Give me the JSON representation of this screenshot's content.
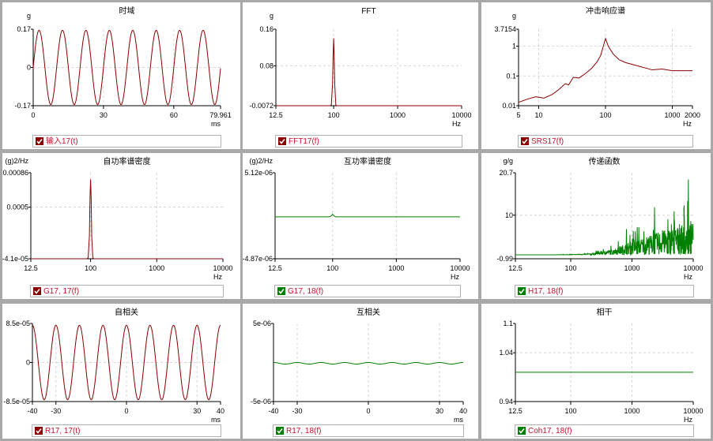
{
  "colors": {
    "red": "#8b0000",
    "green": "#008000",
    "grid": "#d6d6d6",
    "axis": "#000000"
  },
  "chart_data": [
    {
      "id": "p1",
      "type": "line",
      "title": "时域",
      "ylabel": "g",
      "xlabel": "ms",
      "xscale": "linear",
      "xlim": [
        0,
        79.961
      ],
      "xticks": [
        "0",
        "30",
        "60",
        "79.961"
      ],
      "xtick_values": [
        0,
        30,
        60,
        79.961
      ],
      "ylim": [
        -0.17,
        0.17
      ],
      "yticks": [
        "0.17",
        "0",
        "-0.17"
      ],
      "ytick_values": [
        0.17,
        0,
        -0.17
      ],
      "series": [
        {
          "color": "red",
          "kind": "sine",
          "amplitude": 0.165,
          "frequency_per_ms": 0.1,
          "phase_deg": 0
        }
      ],
      "legend": {
        "label": "输入17(t)",
        "checkbox": "red"
      }
    },
    {
      "id": "p2",
      "type": "line",
      "title": "FFT",
      "ylabel": "g",
      "xlabel": "Hz",
      "xscale": "log",
      "xlim": [
        12.5,
        10000
      ],
      "xticks": [
        "12.5",
        "100",
        "1000",
        "10000"
      ],
      "xtick_values": [
        12.5,
        100,
        1000,
        10000
      ],
      "ylim": [
        -0.0072,
        0.16
      ],
      "yticks": [
        "0.16",
        "0.08",
        "-0.0072"
      ],
      "ytick_values": [
        0.16,
        0.08,
        -0.0072
      ],
      "series": [
        {
          "color": "red",
          "x": [
            12.5,
            88,
            92,
            96,
            98,
            100,
            102,
            104,
            108,
            112,
            10000
          ],
          "y": [
            -0.0072,
            -0.0072,
            -0.005,
            0.04,
            0.1,
            0.14,
            0.1,
            0.04,
            -0.005,
            -0.0072,
            -0.0072
          ]
        }
      ],
      "legend": {
        "label": "FFT17(f)",
        "checkbox": "red"
      }
    },
    {
      "id": "p3",
      "type": "line",
      "title": "冲击响应谱",
      "ylabel": "g",
      "xlabel": "Hz",
      "xscale": "log",
      "yscale": "log",
      "xlim": [
        5,
        2000
      ],
      "xticks": [
        "5",
        "10",
        "100",
        "1000",
        "2000"
      ],
      "xtick_values": [
        5,
        10,
        100,
        1000,
        2000
      ],
      "ylim": [
        0.01,
        3.7154
      ],
      "yticks": [
        "3.7154",
        "1",
        "0.1",
        "0.01"
      ],
      "ytick_values": [
        3.7154,
        1,
        0.1,
        0.01
      ],
      "series": [
        {
          "color": "red",
          "x": [
            5,
            7,
            9,
            12,
            16,
            20,
            25,
            28,
            33,
            40,
            50,
            62,
            75,
            85,
            100,
            110,
            130,
            160,
            200,
            300,
            500,
            700,
            1000,
            1500,
            2000
          ],
          "y": [
            0.013,
            0.017,
            0.02,
            0.018,
            0.024,
            0.035,
            0.055,
            0.05,
            0.09,
            0.085,
            0.12,
            0.18,
            0.3,
            0.5,
            1.8,
            1.0,
            0.55,
            0.35,
            0.28,
            0.22,
            0.16,
            0.17,
            0.15,
            0.15,
            0.15
          ]
        }
      ],
      "legend": {
        "label": "SRS17(f)",
        "checkbox": "red"
      }
    },
    {
      "id": "p4",
      "type": "line",
      "title": "自功率谱密度",
      "ylabel": "(g)2/Hz",
      "xlabel": "Hz",
      "xscale": "log",
      "xlim": [
        12.5,
        10000
      ],
      "xticks": [
        "12.5",
        "100",
        "1000",
        "10000"
      ],
      "xtick_values": [
        12.5,
        100,
        1000,
        10000
      ],
      "ylim": [
        -4.1e-05,
        0.00086
      ],
      "yticks": [
        "0.00086",
        "0.0005",
        "-4.1e-05"
      ],
      "ytick_values": [
        0.00086,
        0.0005,
        -4.1e-05
      ],
      "series": [
        {
          "color": "red",
          "x": [
            12.5,
            88,
            92,
            96,
            98,
            100,
            102,
            104,
            108,
            112,
            10000
          ],
          "y": [
            -4.1e-05,
            -4.1e-05,
            -3e-05,
            0.0002,
            0.0006,
            0.00079,
            0.0006,
            0.0002,
            -3e-05,
            -4.1e-05,
            -4.1e-05
          ]
        }
      ],
      "legend": {
        "label": "G17, 17(f)",
        "checkbox": "red"
      }
    },
    {
      "id": "p5",
      "type": "line",
      "title": "互功率谱密度",
      "ylabel": "(g)2/Hz",
      "xlabel": "Hz",
      "xscale": "log",
      "xlim": [
        12.5,
        10000
      ],
      "xticks": [
        "12.5",
        "100",
        "1000",
        "10000"
      ],
      "xtick_values": [
        12.5,
        100,
        1000,
        10000
      ],
      "ylim": [
        -4.87e-06,
        5.12e-06
      ],
      "yticks": [
        "5.12e-06",
        "-4.87e-06"
      ],
      "ytick_values": [
        5.12e-06,
        -4.87e-06
      ],
      "series": [
        {
          "color": "green",
          "x": [
            12.5,
            85,
            92,
            98,
            100,
            103,
            108,
            115,
            10000
          ],
          "y": [
            0.0,
            0.0,
            5e-08,
            2e-07,
            3e-07,
            2e-07,
            5e-08,
            0.0,
            0.0
          ]
        }
      ],
      "legend": {
        "label": "G17, 18(f)",
        "checkbox": "green"
      }
    },
    {
      "id": "p6",
      "type": "line",
      "title": "传递函数",
      "ylabel": "g/g",
      "xlabel": "Hz",
      "xscale": "log",
      "xlim": [
        12.5,
        10000
      ],
      "xticks": [
        "12.5",
        "100",
        "1000",
        "10000"
      ],
      "xtick_values": [
        12.5,
        100,
        1000,
        10000
      ],
      "ylim": [
        -0.99,
        20.7
      ],
      "yticks": [
        "20.7",
        "10",
        "-0.99"
      ],
      "ytick_values": [
        20.7,
        10,
        -0.99
      ],
      "series": [
        {
          "color": "green",
          "kind": "noise",
          "seed": 7,
          "x": [
            12.5,
            50,
            100,
            200,
            300,
            500,
            700,
            1000,
            2000,
            3000,
            5000,
            7000,
            10000
          ],
          "envelope": [
            0.0,
            0.0,
            0.1,
            0.3,
            0.8,
            1.5,
            2.5,
            3.5,
            5.0,
            6.0,
            7.0,
            7.5,
            8.0
          ],
          "spikes": [
            {
              "x": 800,
              "y": 6.5
            },
            {
              "x": 1200,
              "y": 7.0
            },
            {
              "x": 2300,
              "y": 12.0
            },
            {
              "x": 3800,
              "y": 9.0
            },
            {
              "x": 4800,
              "y": 11.0
            },
            {
              "x": 7000,
              "y": 12.5
            },
            {
              "x": 8200,
              "y": 19.0
            },
            {
              "x": 9000,
              "y": 8.5
            }
          ]
        }
      ],
      "legend": {
        "label": "H17, 18(f)",
        "checkbox": "green"
      }
    },
    {
      "id": "p7",
      "type": "line",
      "title": "自相关",
      "ylabel": "",
      "xlabel": "ms",
      "xscale": "linear",
      "xlim": [
        -40,
        40
      ],
      "xticks": [
        "-40",
        "-30",
        "0",
        "30",
        "40"
      ],
      "xtick_values": [
        -40,
        -30,
        0,
        30,
        40
      ],
      "ylim": [
        -8.5e-05,
        8.5e-05
      ],
      "yticks": [
        "8.5e-05",
        "0",
        "-8.5e-05"
      ],
      "ytick_values": [
        8.5e-05,
        0,
        -8.5e-05
      ],
      "series": [
        {
          "color": "red",
          "kind": "cosine",
          "amplitude": 8.1e-05,
          "frequency_per_ms": 0.1,
          "phase_deg": 0
        }
      ],
      "legend": {
        "label": "R17, 17(t)",
        "checkbox": "red"
      }
    },
    {
      "id": "p8",
      "type": "line",
      "title": "互相关",
      "ylabel": "",
      "xlabel": "ms",
      "xscale": "linear",
      "xlim": [
        -40,
        40
      ],
      "xticks": [
        "-40",
        "-30",
        "0",
        "30",
        "40"
      ],
      "xtick_values": [
        -40,
        -30,
        0,
        30,
        40
      ],
      "ylim": [
        -5e-06,
        5e-06
      ],
      "yticks": [
        "5e-06",
        "-5e-06"
      ],
      "ytick_values": [
        5e-06,
        -5e-06
      ],
      "series": [
        {
          "color": "green",
          "kind": "cosine",
          "amplitude": 1e-07,
          "frequency_per_ms": 0.1,
          "phase_deg": 0,
          "offset": -1e-07
        }
      ],
      "legend": {
        "label": "R17, 18(f)",
        "checkbox": "green"
      }
    },
    {
      "id": "p9",
      "type": "line",
      "title": "相干",
      "ylabel": "",
      "xlabel": "Hz",
      "xscale": "log",
      "xlim": [
        12.5,
        10000
      ],
      "xticks": [
        "12.5",
        "100",
        "1000",
        "10000"
      ],
      "xtick_values": [
        12.5,
        100,
        1000,
        10000
      ],
      "ylim": [
        0.94,
        1.1
      ],
      "yticks": [
        "1.1",
        "1.04",
        "0.94"
      ],
      "ytick_values": [
        1.1,
        1.04,
        0.94
      ],
      "series": [
        {
          "color": "green",
          "x": [
            12.5,
            10000
          ],
          "y": [
            1.0,
            1.0
          ]
        }
      ],
      "legend": {
        "label": "Coh17, 18(f)",
        "checkbox": "green"
      }
    }
  ]
}
